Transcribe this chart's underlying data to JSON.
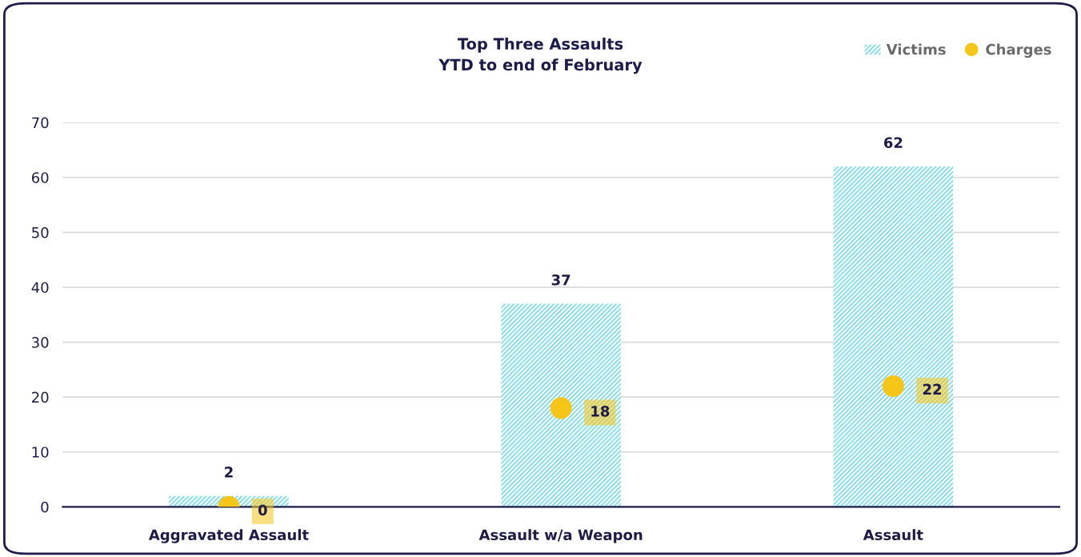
{
  "chart_data": {
    "type": "bar",
    "title": "Top Three Assaults\nYTD to end of February",
    "categories": [
      "Aggravated Assault",
      "Assault w/a Weapon",
      "Assault"
    ],
    "series": [
      {
        "name": "Victims",
        "color": "#6fd6e3",
        "values": [
          2,
          37,
          62
        ]
      },
      {
        "name": "Charges",
        "type": "scatter",
        "color": "#f5c518",
        "values": [
          0,
          18,
          22
        ]
      }
    ],
    "ylim": [
      0,
      70
    ],
    "yticks": [
      0,
      10,
      20,
      30,
      40,
      50,
      60,
      70
    ],
    "grid": "y",
    "legend": "top right",
    "data_labels": true,
    "marker": "circle"
  }
}
